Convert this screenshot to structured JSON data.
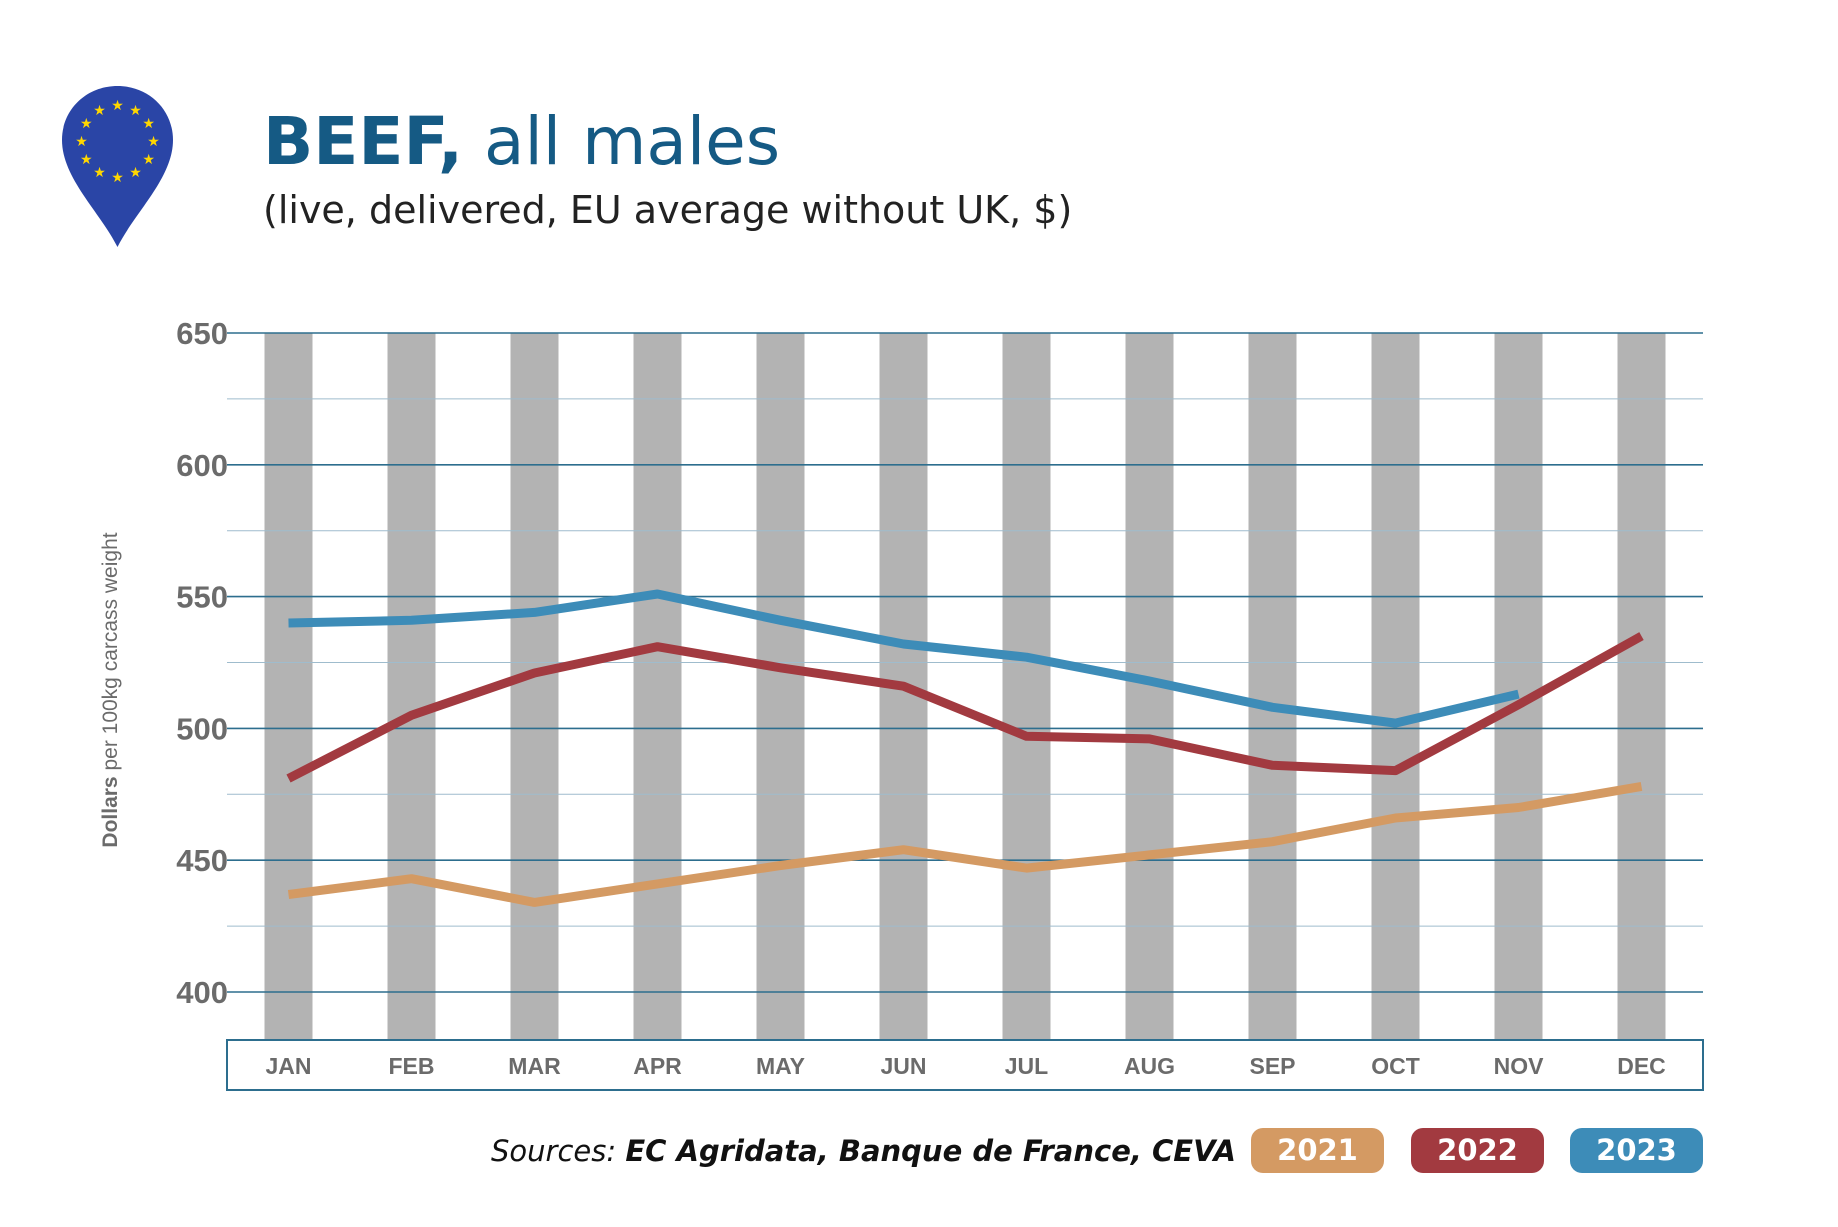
{
  "header": {
    "title_bold": "BEEF,",
    "title_rest": " all males",
    "subtitle": "(live, delivered, EU average without UK, $)"
  },
  "badge": {
    "icon": "eu-flag-map-pin-icon",
    "color": "#2a45a6",
    "star_color": "#ffd700"
  },
  "footer": {
    "sources_label": "Sources: ",
    "sources_list": "EC Agridata, Banque de France, CEVA"
  },
  "chart_data": {
    "type": "line",
    "ylabel_bold": "Dollars",
    "ylabel_rest": " per 100kg carcass weight",
    "xlabel": "",
    "ylim": [
      400,
      650
    ],
    "yticks": [
      400,
      450,
      500,
      550,
      600,
      650
    ],
    "grid": true,
    "alternating_gray_month_bars": true,
    "legend_position": "bottom-right",
    "categories": [
      "JAN",
      "FEB",
      "MAR",
      "APR",
      "MAY",
      "JUN",
      "JUL",
      "AUG",
      "SEP",
      "OCT",
      "NOV",
      "DEC"
    ],
    "series": [
      {
        "name": "2021",
        "color": "#d49a63",
        "values": [
          437,
          443,
          434,
          441,
          448,
          454,
          447,
          452,
          457,
          466,
          470,
          478
        ]
      },
      {
        "name": "2022",
        "color": "#a23a40",
        "values": [
          481,
          505,
          521,
          531,
          523,
          516,
          497,
          496,
          486,
          484,
          509,
          535
        ]
      },
      {
        "name": "2023",
        "color": "#3d8cb8",
        "values": [
          540,
          541,
          544,
          551,
          541,
          532,
          527,
          518,
          508,
          502,
          513,
          null
        ]
      }
    ]
  },
  "colors": {
    "title": "#155a84",
    "axis_text": "#6b6b6b",
    "gridline": "#2d6e8e",
    "gray_bar": "#b3b3b3"
  }
}
